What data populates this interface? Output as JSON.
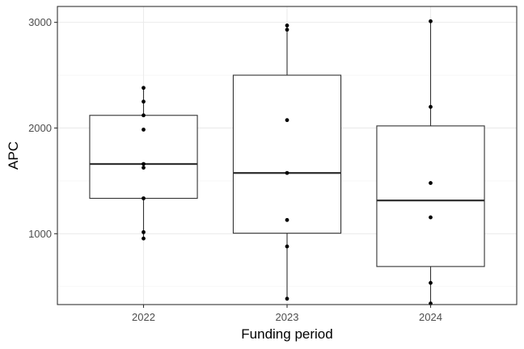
{
  "chart_data": {
    "type": "box",
    "title": "",
    "xlabel": "Funding period",
    "ylabel": "APC",
    "categories": [
      "2022",
      "2023",
      "2024"
    ],
    "ylim": [
      330,
      3150
    ],
    "yticks": [
      1000,
      2000,
      3000
    ],
    "grid": true,
    "boxes": [
      {
        "category": "2022",
        "q1": 1335,
        "median": 1660,
        "q3": 2120,
        "whisker_low": 950,
        "whisker_high": 2380
      },
      {
        "category": "2023",
        "q1": 1005,
        "median": 1575,
        "q3": 2500,
        "whisker_low": 385,
        "whisker_high": 2970
      },
      {
        "category": "2024",
        "q1": 690,
        "median": 1315,
        "q3": 2020,
        "whisker_low": 335,
        "whisker_high": 3010
      }
    ],
    "points": [
      {
        "category": "2022",
        "values": [
          2380,
          2250,
          2120,
          1985,
          1660,
          1625,
          1335,
          1015,
          955
        ]
      },
      {
        "category": "2023",
        "values": [
          2970,
          2930,
          2075,
          1575,
          1130,
          880,
          385
        ]
      },
      {
        "category": "2024",
        "values": [
          3010,
          2200,
          1480,
          1155,
          535,
          340
        ]
      }
    ]
  }
}
